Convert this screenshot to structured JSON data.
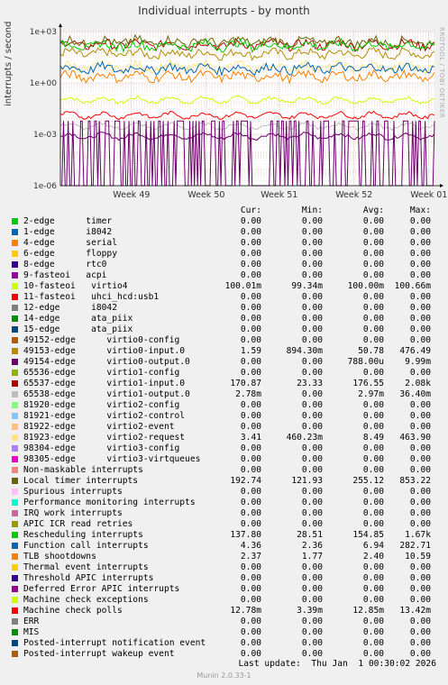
{
  "title": "Individual interrupts - by month",
  "side_credit": "RRDTOOL / TOBI OETIKER",
  "legend_header": {
    "cur": "Cur:",
    "min": "Min:",
    "avg": "Avg:",
    "max": "Max:"
  },
  "last_update": "Last update:  Thu Jan  1 00:30:02 2026",
  "footer": "Munin 2.0.33-1",
  "chart_data": {
    "type": "line",
    "title": "Individual interrupts - by month",
    "ylabel": "interrupts / second",
    "yscale": "log",
    "ylim": [
      1e-06,
      1000
    ],
    "yticks": [
      "1e+03",
      "1e+00",
      "1e-03",
      "1e-06"
    ],
    "xticks": [
      "Week 49",
      "Week 50",
      "Week 51",
      "Week 52",
      "Week 01"
    ],
    "grid": true,
    "series": [
      {
        "name": "2-edge      timer",
        "color": "#00cc00",
        "cur": "0.00",
        "min": "0.00",
        "avg": "0.00",
        "max": "0.00"
      },
      {
        "name": "1-edge      i8042",
        "color": "#0066b3",
        "cur": "0.00",
        "min": "0.00",
        "avg": "0.00",
        "max": "0.00"
      },
      {
        "name": "4-edge      serial",
        "color": "#ff8000",
        "cur": "0.00",
        "min": "0.00",
        "avg": "0.00",
        "max": "0.00"
      },
      {
        "name": "6-edge      floppy",
        "color": "#ffcc00",
        "cur": "0.00",
        "min": "0.00",
        "avg": "0.00",
        "max": "0.00"
      },
      {
        "name": "8-edge      rtc0",
        "color": "#330099",
        "cur": "0.00",
        "min": "0.00",
        "avg": "0.00",
        "max": "0.00"
      },
      {
        "name": "9-fasteoi   acpi",
        "color": "#990099",
        "cur": "0.00",
        "min": "0.00",
        "avg": "0.00",
        "max": "0.00"
      },
      {
        "name": "10-fasteoi   virtio4",
        "color": "#ccff00",
        "cur": "100.01m",
        "min": "99.34m",
        "avg": "100.00m",
        "max": "100.66m"
      },
      {
        "name": "11-fasteoi   uhci_hcd:usb1",
        "color": "#ff0000",
        "cur": "0.00",
        "min": "0.00",
        "avg": "0.00",
        "max": "0.00"
      },
      {
        "name": "12-edge      i8042",
        "color": "#808080",
        "cur": "0.00",
        "min": "0.00",
        "avg": "0.00",
        "max": "0.00"
      },
      {
        "name": "14-edge      ata_piix",
        "color": "#008f00",
        "cur": "0.00",
        "min": "0.00",
        "avg": "0.00",
        "max": "0.00"
      },
      {
        "name": "15-edge      ata_piix",
        "color": "#00487d",
        "cur": "0.00",
        "min": "0.00",
        "avg": "0.00",
        "max": "0.00"
      },
      {
        "name": "49152-edge      virtio0-config",
        "color": "#b35a00",
        "cur": "0.00",
        "min": "0.00",
        "avg": "0.00",
        "max": "0.00"
      },
      {
        "name": "49153-edge      virtio0-input.0",
        "color": "#b38f00",
        "cur": "1.59",
        "min": "894.30m",
        "avg": "50.78",
        "max": "476.49"
      },
      {
        "name": "49154-edge      virtio0-output.0",
        "color": "#6b006b",
        "cur": "0.00",
        "min": "0.00",
        "avg": "788.00u",
        "max": "9.99m"
      },
      {
        "name": "65536-edge      virtio1-config",
        "color": "#8fb300",
        "cur": "0.00",
        "min": "0.00",
        "avg": "0.00",
        "max": "0.00"
      },
      {
        "name": "65537-edge      virtio1-input.0",
        "color": "#b30000",
        "cur": "170.87",
        "min": "23.33",
        "avg": "176.55",
        "max": "2.08k"
      },
      {
        "name": "65538-edge      virtio1-output.0",
        "color": "#bebebe",
        "cur": "2.78m",
        "min": "0.00",
        "avg": "2.97m",
        "max": "36.40m"
      },
      {
        "name": "81920-edge      virtio2-config",
        "color": "#80ff80",
        "cur": "0.00",
        "min": "0.00",
        "avg": "0.00",
        "max": "0.00"
      },
      {
        "name": "81921-edge      virtio2-control",
        "color": "#80c9ff",
        "cur": "0.00",
        "min": "0.00",
        "avg": "0.00",
        "max": "0.00"
      },
      {
        "name": "81922-edge      virtio2-event",
        "color": "#ffc080",
        "cur": "0.00",
        "min": "0.00",
        "avg": "0.00",
        "max": "0.00"
      },
      {
        "name": "81923-edge      virtio2-request",
        "color": "#ffe680",
        "cur": "3.41",
        "min": "460.23m",
        "avg": "8.49",
        "max": "463.90"
      },
      {
        "name": "98304-edge      virtio3-config",
        "color": "#aa80ff",
        "cur": "0.00",
        "min": "0.00",
        "avg": "0.00",
        "max": "0.00"
      },
      {
        "name": "98305-edge      virtio3-virtqueues",
        "color": "#ee00cc",
        "cur": "0.00",
        "min": "0.00",
        "avg": "0.00",
        "max": "0.00"
      },
      {
        "name": "Non-maskable interrupts",
        "color": "#ff8080",
        "cur": "0.00",
        "min": "0.00",
        "avg": "0.00",
        "max": "0.00"
      },
      {
        "name": "Local timer interrupts",
        "color": "#666600",
        "cur": "192.74",
        "min": "121.93",
        "avg": "255.12",
        "max": "853.22"
      },
      {
        "name": "Spurious interrupts",
        "color": "#ffbfff",
        "cur": "0.00",
        "min": "0.00",
        "avg": "0.00",
        "max": "0.00"
      },
      {
        "name": "Performance monitoring interrupts",
        "color": "#00ffcc",
        "cur": "0.00",
        "min": "0.00",
        "avg": "0.00",
        "max": "0.00"
      },
      {
        "name": "IRQ work interrupts",
        "color": "#cc6699",
        "cur": "0.00",
        "min": "0.00",
        "avg": "0.00",
        "max": "0.00"
      },
      {
        "name": "APIC ICR read retries",
        "color": "#999900",
        "cur": "0.00",
        "min": "0.00",
        "avg": "0.00",
        "max": "0.00"
      },
      {
        "name": "Rescheduling interrupts",
        "color": "#00cc00",
        "cur": "137.80",
        "min": "28.51",
        "avg": "154.85",
        "max": "1.67k"
      },
      {
        "name": "Function call interrupts",
        "color": "#0066b3",
        "cur": "4.36",
        "min": "2.36",
        "avg": "6.94",
        "max": "282.71"
      },
      {
        "name": "TLB shootdowns",
        "color": "#ff8000",
        "cur": "2.37",
        "min": "1.77",
        "avg": "2.40",
        "max": "10.59"
      },
      {
        "name": "Thermal event interrupts",
        "color": "#ffcc00",
        "cur": "0.00",
        "min": "0.00",
        "avg": "0.00",
        "max": "0.00"
      },
      {
        "name": "Threshold APIC interrupts",
        "color": "#330099",
        "cur": "0.00",
        "min": "0.00",
        "avg": "0.00",
        "max": "0.00"
      },
      {
        "name": "Deferred Error APIC interrupts",
        "color": "#990099",
        "cur": "0.00",
        "min": "0.00",
        "avg": "0.00",
        "max": "0.00"
      },
      {
        "name": "Machine check exceptions",
        "color": "#ccff00",
        "cur": "0.00",
        "min": "0.00",
        "avg": "0.00",
        "max": "0.00"
      },
      {
        "name": "Machine check polls",
        "color": "#ff0000",
        "cur": "12.78m",
        "min": "3.39m",
        "avg": "12.85m",
        "max": "13.42m"
      },
      {
        "name": "ERR",
        "color": "#808080",
        "cur": "0.00",
        "min": "0.00",
        "avg": "0.00",
        "max": "0.00"
      },
      {
        "name": "MIS",
        "color": "#008f00",
        "cur": "0.00",
        "min": "0.00",
        "avg": "0.00",
        "max": "0.00"
      },
      {
        "name": "Posted-interrupt notification event",
        "color": "#00487d",
        "cur": "0.00",
        "min": "0.00",
        "avg": "0.00",
        "max": "0.00"
      },
      {
        "name": "Posted-interrupt wakeup event",
        "color": "#b35a00",
        "cur": "0.00",
        "min": "0.00",
        "avg": "0.00",
        "max": "0.00"
      }
    ]
  }
}
